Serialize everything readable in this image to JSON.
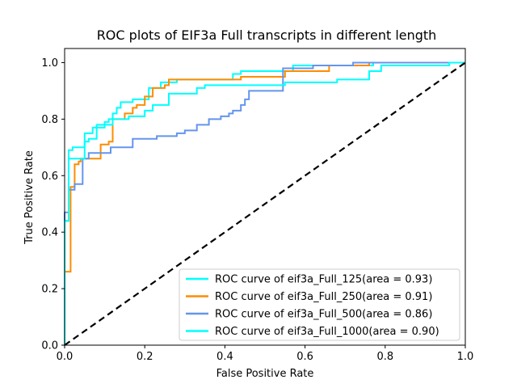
{
  "chart_data": {
    "type": "line",
    "title": "ROC plots of EIF3a Full transcripts in different length",
    "xlabel": "False Positive Rate",
    "ylabel": "True Positive Rate",
    "xlim": [
      0.0,
      1.0
    ],
    "ylim": [
      0.0,
      1.05
    ],
    "x_ticks": [
      "0.0",
      "0.2",
      "0.4",
      "0.6",
      "0.8",
      "1.0"
    ],
    "y_ticks": [
      "0.0",
      "0.2",
      "0.4",
      "0.6",
      "0.8",
      "1.0"
    ],
    "grid": false,
    "legend_position": "lower-right",
    "series": [
      {
        "name": "ROC curve of eif3a_Full_125(area = 0.93)",
        "color": "#00ffff",
        "points": [
          [
            0,
            0
          ],
          [
            0,
            0.44
          ],
          [
            0.01,
            0.44
          ],
          [
            0.01,
            0.69
          ],
          [
            0.02,
            0.69
          ],
          [
            0.02,
            0.7
          ],
          [
            0.05,
            0.7
          ],
          [
            0.05,
            0.75
          ],
          [
            0.07,
            0.75
          ],
          [
            0.07,
            0.77
          ],
          [
            0.08,
            0.77
          ],
          [
            0.08,
            0.78
          ],
          [
            0.1,
            0.78
          ],
          [
            0.1,
            0.79
          ],
          [
            0.11,
            0.79
          ],
          [
            0.11,
            0.8
          ],
          [
            0.12,
            0.8
          ],
          [
            0.12,
            0.82
          ],
          [
            0.13,
            0.82
          ],
          [
            0.13,
            0.84
          ],
          [
            0.14,
            0.84
          ],
          [
            0.14,
            0.86
          ],
          [
            0.17,
            0.86
          ],
          [
            0.17,
            0.87
          ],
          [
            0.21,
            0.87
          ],
          [
            0.21,
            0.91
          ],
          [
            0.24,
            0.91
          ],
          [
            0.24,
            0.93
          ],
          [
            0.28,
            0.93
          ],
          [
            0.28,
            0.94
          ],
          [
            0.42,
            0.94
          ],
          [
            0.42,
            0.96
          ],
          [
            0.44,
            0.96
          ],
          [
            0.44,
            0.97
          ],
          [
            0.57,
            0.97
          ],
          [
            0.57,
            0.99
          ],
          [
            0.77,
            0.99
          ],
          [
            0.77,
            1.0
          ],
          [
            1.0,
            1.0
          ]
        ]
      },
      {
        "name": "ROC curve of eif3a_Full_250(area = 0.91)",
        "color": "#ff8c00",
        "points": [
          [
            0,
            0
          ],
          [
            0,
            0.26
          ],
          [
            0.015,
            0.26
          ],
          [
            0.015,
            0.56
          ],
          [
            0.025,
            0.56
          ],
          [
            0.025,
            0.64
          ],
          [
            0.035,
            0.64
          ],
          [
            0.035,
            0.65
          ],
          [
            0.04,
            0.65
          ],
          [
            0.04,
            0.66
          ],
          [
            0.09,
            0.66
          ],
          [
            0.09,
            0.71
          ],
          [
            0.11,
            0.71
          ],
          [
            0.11,
            0.72
          ],
          [
            0.12,
            0.72
          ],
          [
            0.12,
            0.8
          ],
          [
            0.15,
            0.8
          ],
          [
            0.15,
            0.82
          ],
          [
            0.17,
            0.82
          ],
          [
            0.17,
            0.84
          ],
          [
            0.18,
            0.84
          ],
          [
            0.18,
            0.85
          ],
          [
            0.2,
            0.85
          ],
          [
            0.2,
            0.88
          ],
          [
            0.22,
            0.88
          ],
          [
            0.22,
            0.91
          ],
          [
            0.25,
            0.91
          ],
          [
            0.25,
            0.92
          ],
          [
            0.26,
            0.92
          ],
          [
            0.26,
            0.94
          ],
          [
            0.44,
            0.94
          ],
          [
            0.44,
            0.95
          ],
          [
            0.55,
            0.95
          ],
          [
            0.55,
            0.97
          ],
          [
            0.66,
            0.97
          ],
          [
            0.66,
            0.99
          ],
          [
            0.76,
            0.99
          ],
          [
            0.76,
            1.0
          ],
          [
            1.0,
            1.0
          ]
        ]
      },
      {
        "name": "ROC curve of eif3a_Full_500(area = 0.86)",
        "color": "#6495ed",
        "points": [
          [
            0,
            0
          ],
          [
            0,
            0.47
          ],
          [
            0.01,
            0.47
          ],
          [
            0.01,
            0.55
          ],
          [
            0.025,
            0.55
          ],
          [
            0.025,
            0.57
          ],
          [
            0.045,
            0.57
          ],
          [
            0.045,
            0.66
          ],
          [
            0.06,
            0.66
          ],
          [
            0.06,
            0.68
          ],
          [
            0.115,
            0.68
          ],
          [
            0.115,
            0.7
          ],
          [
            0.17,
            0.7
          ],
          [
            0.17,
            0.73
          ],
          [
            0.23,
            0.73
          ],
          [
            0.23,
            0.74
          ],
          [
            0.28,
            0.74
          ],
          [
            0.28,
            0.75
          ],
          [
            0.3,
            0.75
          ],
          [
            0.3,
            0.76
          ],
          [
            0.33,
            0.76
          ],
          [
            0.33,
            0.78
          ],
          [
            0.36,
            0.78
          ],
          [
            0.36,
            0.8
          ],
          [
            0.39,
            0.8
          ],
          [
            0.39,
            0.81
          ],
          [
            0.41,
            0.81
          ],
          [
            0.41,
            0.82
          ],
          [
            0.42,
            0.82
          ],
          [
            0.42,
            0.83
          ],
          [
            0.44,
            0.83
          ],
          [
            0.44,
            0.85
          ],
          [
            0.45,
            0.85
          ],
          [
            0.45,
            0.87
          ],
          [
            0.46,
            0.87
          ],
          [
            0.46,
            0.9
          ],
          [
            0.545,
            0.9
          ],
          [
            0.545,
            0.98
          ],
          [
            0.62,
            0.98
          ],
          [
            0.62,
            0.99
          ],
          [
            0.72,
            0.99
          ],
          [
            0.72,
            1.0
          ],
          [
            0.965,
            1.0
          ],
          [
            0.965,
            1.0
          ],
          [
            1.0,
            1.0
          ]
        ]
      },
      {
        "name": "ROC curve of eif3a_Full_1000(area = 0.90)",
        "color": "#00ffff",
        "points": [
          [
            0,
            0
          ],
          [
            0,
            0.44
          ],
          [
            0.01,
            0.44
          ],
          [
            0.01,
            0.66
          ],
          [
            0.05,
            0.66
          ],
          [
            0.05,
            0.72
          ],
          [
            0.06,
            0.72
          ],
          [
            0.06,
            0.73
          ],
          [
            0.08,
            0.73
          ],
          [
            0.08,
            0.77
          ],
          [
            0.1,
            0.77
          ],
          [
            0.1,
            0.78
          ],
          [
            0.12,
            0.78
          ],
          [
            0.12,
            0.8
          ],
          [
            0.16,
            0.8
          ],
          [
            0.16,
            0.81
          ],
          [
            0.2,
            0.81
          ],
          [
            0.2,
            0.83
          ],
          [
            0.22,
            0.83
          ],
          [
            0.22,
            0.85
          ],
          [
            0.26,
            0.85
          ],
          [
            0.26,
            0.89
          ],
          [
            0.33,
            0.89
          ],
          [
            0.33,
            0.91
          ],
          [
            0.35,
            0.91
          ],
          [
            0.35,
            0.92
          ],
          [
            0.55,
            0.92
          ],
          [
            0.55,
            0.93
          ],
          [
            0.68,
            0.93
          ],
          [
            0.68,
            0.94
          ],
          [
            0.76,
            0.94
          ],
          [
            0.76,
            0.97
          ],
          [
            0.79,
            0.97
          ],
          [
            0.79,
            0.99
          ],
          [
            0.96,
            0.99
          ],
          [
            0.96,
            1.0
          ],
          [
            1.0,
            1.0
          ]
        ]
      }
    ],
    "reference_line": {
      "color": "#000000",
      "style": "dashed",
      "points": [
        [
          0,
          0
        ],
        [
          1,
          1
        ]
      ]
    }
  }
}
